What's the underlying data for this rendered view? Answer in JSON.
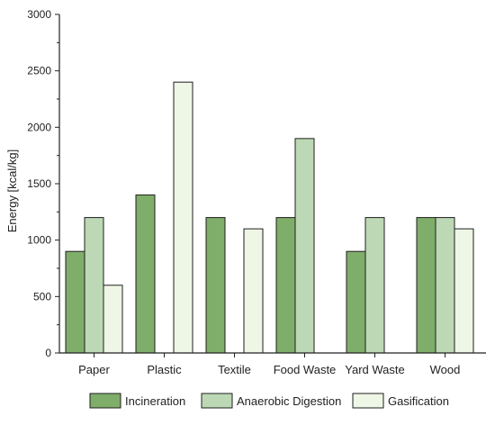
{
  "chart_data": {
    "type": "bar",
    "title": "",
    "xlabel": "",
    "ylabel": "Energy [kcal/kg]",
    "ylim": [
      0,
      3000
    ],
    "yticks": [
      0,
      500,
      1000,
      1500,
      2000,
      2500,
      3000
    ],
    "grid": false,
    "legend_position": "bottom",
    "categories": [
      "Paper",
      "Plastic",
      "Textile",
      "Food Waste",
      "Yard Waste",
      "Wood"
    ],
    "series": [
      {
        "name": "Incineration",
        "color": "#7fad6a",
        "values": [
          900,
          1400,
          1200,
          1200,
          900,
          1200
        ]
      },
      {
        "name": "Anaerobic Digestion",
        "color": "#bcd8b4",
        "values": [
          1200,
          0,
          0,
          1900,
          1200,
          1200
        ]
      },
      {
        "name": "Gasification",
        "color": "#eef6e6",
        "values": [
          600,
          2400,
          1100,
          0,
          0,
          1100
        ]
      }
    ]
  }
}
